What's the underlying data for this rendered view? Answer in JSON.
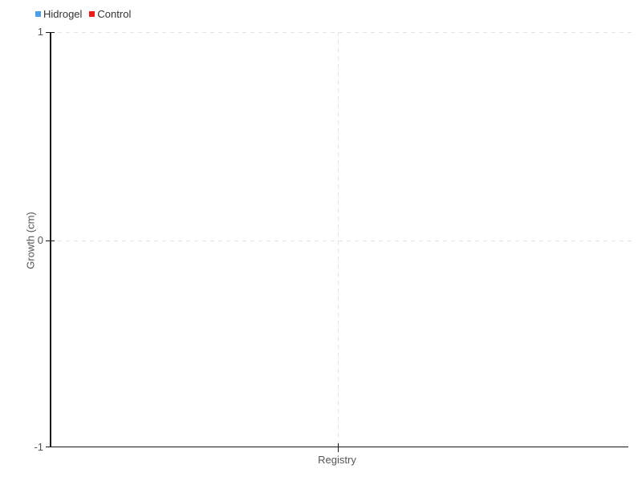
{
  "chart_data": {
    "type": "line",
    "title": "",
    "categories": [
      "Registry"
    ],
    "series": [
      {
        "name": "Hidrogel",
        "color": "#4d9ee8",
        "values": []
      },
      {
        "name": "Control",
        "color": "#ee1b1b",
        "values": []
      }
    ],
    "xlabel": "",
    "ylabel": "Growth (cm)",
    "ylim": [
      -1,
      1
    ],
    "y_tick_labels": [
      "1",
      "0",
      "-1"
    ],
    "x_tick_labels": [
      "Registry"
    ],
    "grid": "dashed",
    "legend_position": "top-left",
    "axis_color": "#1a1a1a",
    "grid_color": "#e3e3e3",
    "tick_text_color": "#555555",
    "legend_text_color": "#333333",
    "background_color": "#ffffff",
    "note_visible_points": "none"
  }
}
